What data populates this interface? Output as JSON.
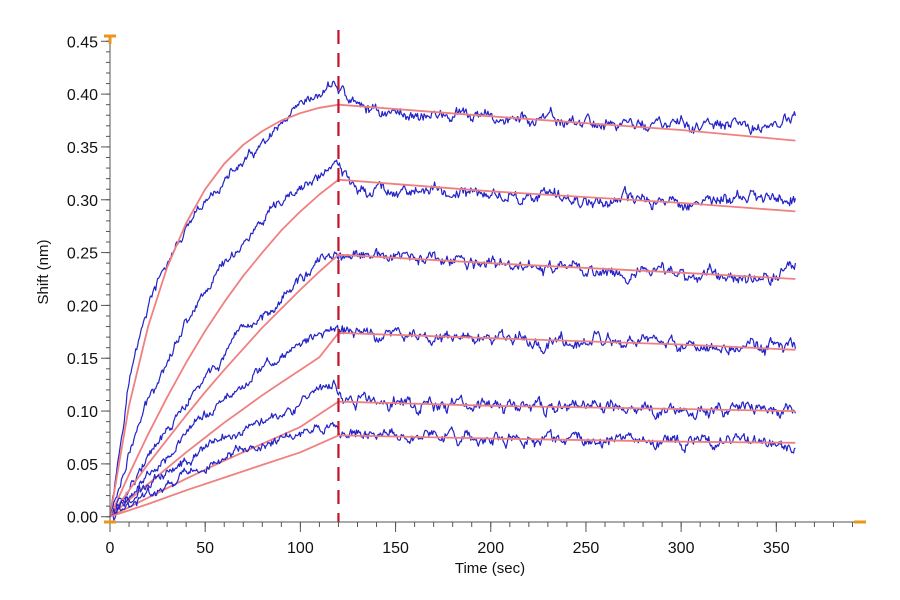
{
  "chart_data": {
    "type": "line",
    "title": "",
    "xlabel": "Time (sec)",
    "ylabel": "Shift (nm)",
    "xlim": [
      0,
      395
    ],
    "ylim": [
      -0.005,
      0.455
    ],
    "x_ticks": [
      0,
      50,
      100,
      150,
      200,
      250,
      300,
      350
    ],
    "x_tick_labels": [
      "0",
      "50",
      "100",
      "150",
      "200",
      "250",
      "300",
      "350"
    ],
    "x_minor_step": 10,
    "y_ticks": [
      0,
      0.05,
      0.1,
      0.15,
      0.2,
      0.25,
      0.3,
      0.35,
      0.4,
      0.45
    ],
    "y_tick_labels": [
      "0.00",
      "0.05",
      "0.10",
      "0.15",
      "0.20",
      "0.25",
      "0.30",
      "0.35",
      "0.40",
      "0.45"
    ],
    "y_minor_step": 0.01,
    "grid": false,
    "legend": "none",
    "vertical_marker": {
      "x": 120,
      "color": "#c0142a",
      "style": "dashed"
    },
    "association_end": 120,
    "end_time": 360,
    "colors": {
      "measured": "#2323c8",
      "fit": "#f08080",
      "axis": "#e8961e"
    },
    "series": [
      {
        "measured": [
          [
            0,
            0
          ],
          [
            10,
            0.13
          ],
          [
            20,
            0.2
          ],
          [
            30,
            0.24
          ],
          [
            40,
            0.27
          ],
          [
            50,
            0.295
          ],
          [
            60,
            0.318
          ],
          [
            70,
            0.335
          ],
          [
            80,
            0.35
          ],
          [
            90,
            0.368
          ],
          [
            100,
            0.385
          ],
          [
            110,
            0.398
          ],
          [
            118,
            0.412
          ],
          [
            120,
            0.405
          ],
          [
            130,
            0.388
          ],
          [
            150,
            0.382
          ],
          [
            200,
            0.377
          ],
          [
            250,
            0.373
          ],
          [
            300,
            0.37
          ],
          [
            340,
            0.368
          ],
          [
            360,
            0.378
          ]
        ],
        "fit": [
          [
            0,
            0
          ],
          [
            10,
            0.105
          ],
          [
            20,
            0.18
          ],
          [
            30,
            0.236
          ],
          [
            40,
            0.278
          ],
          [
            50,
            0.31
          ],
          [
            60,
            0.334
          ],
          [
            70,
            0.352
          ],
          [
            80,
            0.365
          ],
          [
            90,
            0.375
          ],
          [
            100,
            0.382
          ],
          [
            110,
            0.387
          ],
          [
            120,
            0.39
          ],
          [
            200,
            0.379
          ],
          [
            300,
            0.366
          ],
          [
            360,
            0.356
          ]
        ]
      },
      {
        "measured": [
          [
            0,
            0
          ],
          [
            10,
            0.06
          ],
          [
            20,
            0.11
          ],
          [
            30,
            0.15
          ],
          [
            40,
            0.185
          ],
          [
            50,
            0.215
          ],
          [
            60,
            0.24
          ],
          [
            70,
            0.26
          ],
          [
            80,
            0.278
          ],
          [
            90,
            0.295
          ],
          [
            100,
            0.31
          ],
          [
            110,
            0.322
          ],
          [
            118,
            0.335
          ],
          [
            120,
            0.327
          ],
          [
            130,
            0.312
          ],
          [
            200,
            0.305
          ],
          [
            250,
            0.3
          ],
          [
            300,
            0.298
          ],
          [
            360,
            0.303
          ]
        ],
        "fit": [
          [
            0,
            0
          ],
          [
            10,
            0.04
          ],
          [
            20,
            0.078
          ],
          [
            30,
            0.113
          ],
          [
            40,
            0.146
          ],
          [
            50,
            0.176
          ],
          [
            60,
            0.203
          ],
          [
            70,
            0.228
          ],
          [
            80,
            0.25
          ],
          [
            90,
            0.271
          ],
          [
            100,
            0.289
          ],
          [
            110,
            0.305
          ],
          [
            120,
            0.319
          ],
          [
            200,
            0.308
          ],
          [
            300,
            0.297
          ],
          [
            360,
            0.289
          ]
        ]
      },
      {
        "measured": [
          [
            0,
            0
          ],
          [
            10,
            0.03
          ],
          [
            20,
            0.055
          ],
          [
            30,
            0.08
          ],
          [
            40,
            0.105
          ],
          [
            50,
            0.13
          ],
          [
            60,
            0.152
          ],
          [
            70,
            0.172
          ],
          [
            80,
            0.19
          ],
          [
            90,
            0.208
          ],
          [
            100,
            0.225
          ],
          [
            110,
            0.24
          ],
          [
            118,
            0.248
          ],
          [
            120,
            0.245
          ],
          [
            150,
            0.245
          ],
          [
            200,
            0.238
          ],
          [
            250,
            0.233
          ],
          [
            300,
            0.23
          ],
          [
            350,
            0.228
          ],
          [
            360,
            0.238
          ]
        ],
        "fit": [
          [
            0,
            0
          ],
          [
            10,
            0.025
          ],
          [
            20,
            0.05
          ],
          [
            30,
            0.073
          ],
          [
            40,
            0.096
          ],
          [
            50,
            0.118
          ],
          [
            60,
            0.139
          ],
          [
            70,
            0.159
          ],
          [
            80,
            0.179
          ],
          [
            90,
            0.197
          ],
          [
            100,
            0.215
          ],
          [
            110,
            0.232
          ],
          [
            120,
            0.248
          ],
          [
            200,
            0.24
          ],
          [
            300,
            0.231
          ],
          [
            360,
            0.225
          ]
        ]
      },
      {
        "measured": [
          [
            0,
            0
          ],
          [
            10,
            0.02
          ],
          [
            20,
            0.04
          ],
          [
            30,
            0.06
          ],
          [
            40,
            0.078
          ],
          [
            50,
            0.095
          ],
          [
            60,
            0.11
          ],
          [
            70,
            0.125
          ],
          [
            80,
            0.14
          ],
          [
            90,
            0.152
          ],
          [
            100,
            0.163
          ],
          [
            110,
            0.172
          ],
          [
            118,
            0.18
          ],
          [
            120,
            0.175
          ],
          [
            150,
            0.172
          ],
          [
            200,
            0.168
          ],
          [
            250,
            0.165
          ],
          [
            300,
            0.162
          ],
          [
            360,
            0.16
          ]
        ],
        "fit": [
          [
            0,
            0
          ],
          [
            10,
            0.016
          ],
          [
            20,
            0.031
          ],
          [
            30,
            0.046
          ],
          [
            40,
            0.061
          ],
          [
            50,
            0.075
          ],
          [
            60,
            0.089
          ],
          [
            70,
            0.102
          ],
          [
            80,
            0.115
          ],
          [
            90,
            0.127
          ],
          [
            100,
            0.139
          ],
          [
            110,
            0.151
          ],
          [
            120,
            0.174
          ],
          [
            200,
            0.169
          ],
          [
            300,
            0.163
          ],
          [
            360,
            0.158
          ]
        ]
      },
      {
        "measured": [
          [
            0,
            0
          ],
          [
            10,
            0.015
          ],
          [
            20,
            0.03
          ],
          [
            30,
            0.043
          ],
          [
            40,
            0.055
          ],
          [
            50,
            0.066
          ],
          [
            60,
            0.075
          ],
          [
            70,
            0.084
          ],
          [
            80,
            0.093
          ],
          [
            90,
            0.1
          ],
          [
            100,
            0.108
          ],
          [
            110,
            0.115
          ],
          [
            118,
            0.125
          ],
          [
            120,
            0.112
          ],
          [
            150,
            0.108
          ],
          [
            200,
            0.105
          ],
          [
            250,
            0.103
          ],
          [
            300,
            0.101
          ],
          [
            360,
            0.1
          ]
        ],
        "fit": [
          [
            0,
            0
          ],
          [
            20,
            0.018
          ],
          [
            40,
            0.036
          ],
          [
            60,
            0.053
          ],
          [
            80,
            0.069
          ],
          [
            100,
            0.085
          ],
          [
            120,
            0.109
          ],
          [
            200,
            0.105
          ],
          [
            300,
            0.102
          ],
          [
            360,
            0.1
          ]
        ]
      },
      {
        "measured": [
          [
            0,
            0
          ],
          [
            10,
            0.01
          ],
          [
            20,
            0.02
          ],
          [
            30,
            0.03
          ],
          [
            40,
            0.04
          ],
          [
            50,
            0.048
          ],
          [
            60,
            0.055
          ],
          [
            70,
            0.062
          ],
          [
            80,
            0.068
          ],
          [
            90,
            0.073
          ],
          [
            100,
            0.077
          ],
          [
            110,
            0.081
          ],
          [
            118,
            0.085
          ],
          [
            120,
            0.08
          ],
          [
            150,
            0.077
          ],
          [
            200,
            0.074
          ],
          [
            250,
            0.072
          ],
          [
            300,
            0.07
          ],
          [
            360,
            0.069
          ]
        ],
        "fit": [
          [
            0,
            0
          ],
          [
            20,
            0.012
          ],
          [
            40,
            0.025
          ],
          [
            60,
            0.037
          ],
          [
            80,
            0.049
          ],
          [
            100,
            0.061
          ],
          [
            120,
            0.077
          ],
          [
            200,
            0.074
          ],
          [
            300,
            0.071
          ],
          [
            360,
            0.07
          ]
        ]
      }
    ]
  }
}
